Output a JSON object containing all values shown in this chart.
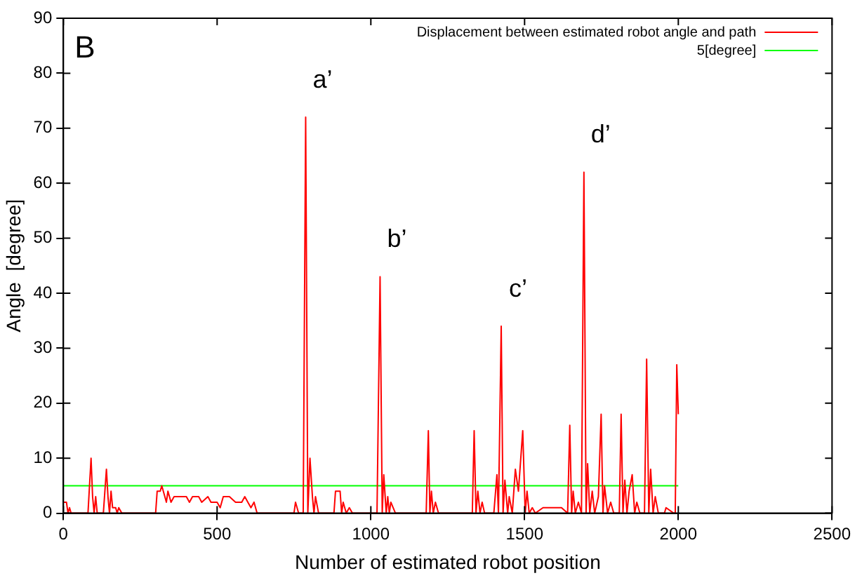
{
  "chart_data": {
    "type": "line",
    "xlabel": "Number of estimated robot position",
    "ylabel": "Angle  [degree]",
    "xlim": [
      0,
      2500
    ],
    "xticks": [
      0,
      500,
      1000,
      1500,
      2000,
      2500
    ],
    "ylim": [
      0,
      90
    ],
    "yticks": [
      0,
      10,
      20,
      30,
      40,
      50,
      60,
      70,
      80,
      90
    ],
    "grid": false,
    "legend": "top right",
    "marker": "none",
    "line_style": "solid",
    "annotations": [
      "B",
      {
        "text": "a’",
        "x": 788,
        "y": 72
      },
      {
        "text": "b’",
        "x": 1030,
        "y": 43
      },
      {
        "text": "c’",
        "x": 1424,
        "y": 34
      },
      {
        "text": "d’",
        "x": 1693,
        "y": 62
      }
    ],
    "series": [
      {
        "name": "Displacement between estimated robot angle and path",
        "color": "#ff0000",
        "x": [
          0,
          10,
          15,
          20,
          25,
          80,
          90,
          95,
          100,
          105,
          110,
          130,
          140,
          145,
          150,
          155,
          160,
          170,
          175,
          180,
          190,
          300,
          305,
          315,
          320,
          330,
          335,
          340,
          345,
          350,
          360,
          400,
          410,
          420,
          440,
          450,
          470,
          480,
          500,
          510,
          520,
          540,
          560,
          580,
          590,
          600,
          610,
          620,
          630,
          750,
          755,
          765,
          780,
          788,
          795,
          802,
          810,
          815,
          820,
          830,
          880,
          885,
          900,
          905,
          910,
          920,
          930,
          940,
          1020,
          1030,
          1037,
          1042,
          1050,
          1055,
          1060,
          1065,
          1080,
          1180,
          1187,
          1192,
          1197,
          1203,
          1210,
          1220,
          1330,
          1336,
          1342,
          1348,
          1355,
          1362,
          1370,
          1400,
          1410,
          1415,
          1424,
          1430,
          1436,
          1445,
          1450,
          1460,
          1470,
          1480,
          1494,
          1502,
          1508,
          1515,
          1525,
          1535,
          1560,
          1620,
          1640,
          1647,
          1653,
          1658,
          1665,
          1675,
          1685,
          1693,
          1700,
          1705,
          1712,
          1720,
          1728,
          1740,
          1749,
          1755,
          1760,
          1770,
          1780,
          1790,
          1808,
          1814,
          1820,
          1826,
          1833,
          1840,
          1850,
          1858,
          1865,
          1875,
          1890,
          1897,
          1904,
          1910,
          1918,
          1925,
          1935,
          1955,
          1960,
          1985,
          1990,
          1995,
          2000
        ],
        "values": [
          2,
          2,
          0,
          1,
          0,
          0,
          10,
          3,
          0,
          3,
          0,
          0,
          8,
          3,
          0,
          4,
          1,
          1,
          0,
          1,
          0,
          0,
          4,
          4,
          5,
          3,
          2,
          4,
          3,
          2,
          3,
          3,
          2,
          3,
          3,
          2,
          3,
          2,
          2,
          1,
          3,
          3,
          2,
          2,
          3,
          2,
          1,
          2,
          0,
          0,
          2,
          0,
          0,
          72,
          0,
          10,
          3,
          0,
          3,
          0,
          0,
          4,
          4,
          0,
          2,
          0,
          1,
          0,
          0,
          43,
          0,
          7,
          0,
          3,
          0,
          2,
          0,
          0,
          15,
          0,
          4,
          0,
          2,
          0,
          0,
          15,
          0,
          4,
          0,
          2,
          0,
          0,
          7,
          0,
          34,
          0,
          6,
          0,
          3,
          0,
          8,
          4,
          15,
          0,
          4,
          0,
          1,
          0,
          1,
          1,
          0,
          16,
          0,
          4,
          0,
          2,
          0,
          62,
          0,
          9,
          0,
          4,
          0,
          3,
          18,
          0,
          5,
          0,
          2,
          0,
          0,
          18,
          0,
          6,
          0,
          4,
          7,
          0,
          2,
          0,
          0,
          28,
          0,
          8,
          0,
          3,
          0,
          0,
          1,
          0,
          0,
          27,
          18
        ]
      },
      {
        "name": "5[degree]",
        "color": "#00ff00",
        "x": [
          0,
          2000
        ],
        "values": [
          5,
          5
        ]
      }
    ]
  }
}
